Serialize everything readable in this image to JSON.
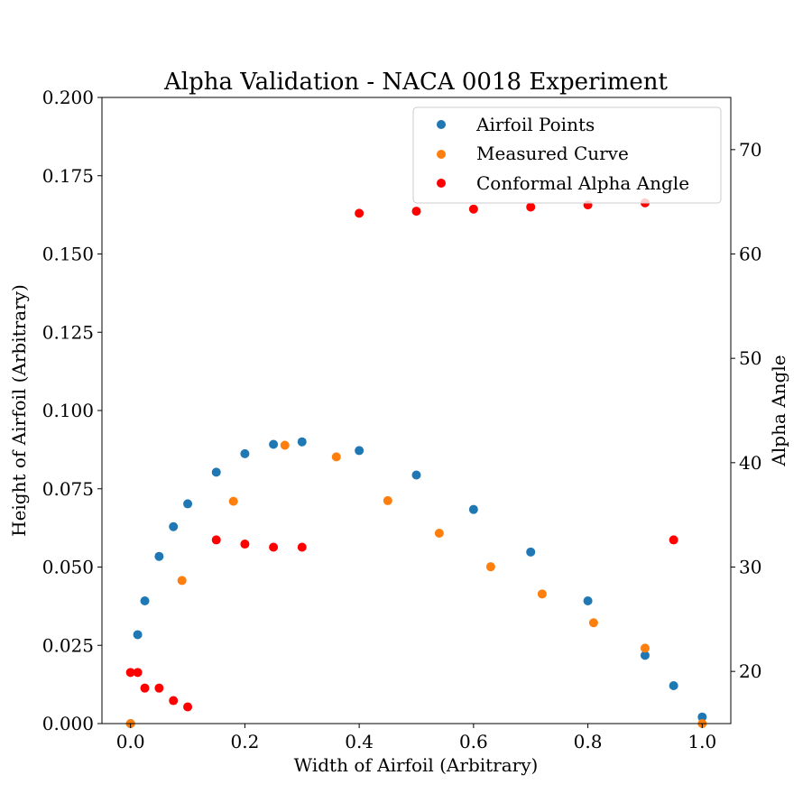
{
  "chart_data": {
    "type": "scatter",
    "title": "Alpha Validation - NACA 0018 Experiment",
    "xlabel": "Width of Airfoil (Arbitrary)",
    "ylabel": "Height of Airfoil (Arbitrary)",
    "y2label": "Alpha Angle",
    "xlim": [
      -0.05,
      1.05
    ],
    "ylim": [
      0,
      0.2
    ],
    "y2lim": [
      15,
      75
    ],
    "xticks": [
      "0.0",
      "0.2",
      "0.4",
      "0.6",
      "0.8",
      "1.0"
    ],
    "yticks": [
      "0.000",
      "0.025",
      "0.050",
      "0.075",
      "0.100",
      "0.125",
      "0.150",
      "0.175",
      "0.200"
    ],
    "y2ticks": [
      "20",
      "30",
      "40",
      "50",
      "60",
      "70"
    ],
    "grid": false,
    "legend_position": "upper right",
    "series": [
      {
        "name": "Airfoil Points",
        "color": "#1f77b4",
        "axis": "left",
        "x": [
          0.0,
          0.0125,
          0.025,
          0.05,
          0.075,
          0.1,
          0.15,
          0.2,
          0.25,
          0.3,
          0.4,
          0.5,
          0.6,
          0.7,
          0.8,
          0.9,
          0.95,
          1.0
        ],
        "y": [
          0.0,
          0.0284,
          0.0392,
          0.0534,
          0.0629,
          0.0702,
          0.0803,
          0.0862,
          0.0892,
          0.09,
          0.0872,
          0.0794,
          0.0684,
          0.0548,
          0.0392,
          0.0218,
          0.0121,
          0.0021
        ]
      },
      {
        "name": "Measured Curve",
        "color": "#ff7f0e",
        "axis": "left",
        "x": [
          0.0,
          0.09,
          0.18,
          0.27,
          0.36,
          0.45,
          0.54,
          0.63,
          0.72,
          0.81,
          0.9,
          1.0
        ],
        "y": [
          0.0,
          0.0457,
          0.071,
          0.0889,
          0.0852,
          0.0712,
          0.0608,
          0.0501,
          0.0414,
          0.0322,
          0.0241,
          0.0
        ]
      },
      {
        "name": "Conformal Alpha Angle",
        "color": "#ff0000",
        "axis": "right",
        "x": [
          0.0,
          0.0125,
          0.025,
          0.05,
          0.075,
          0.1,
          0.15,
          0.2,
          0.25,
          0.3,
          0.4,
          0.5,
          0.6,
          0.7,
          0.8,
          0.9,
          0.95
        ],
        "y": [
          19.9,
          19.9,
          18.4,
          18.4,
          17.2,
          16.6,
          32.6,
          32.2,
          31.9,
          31.9,
          63.9,
          64.1,
          64.3,
          64.5,
          64.7,
          64.9,
          32.6
        ]
      }
    ]
  }
}
